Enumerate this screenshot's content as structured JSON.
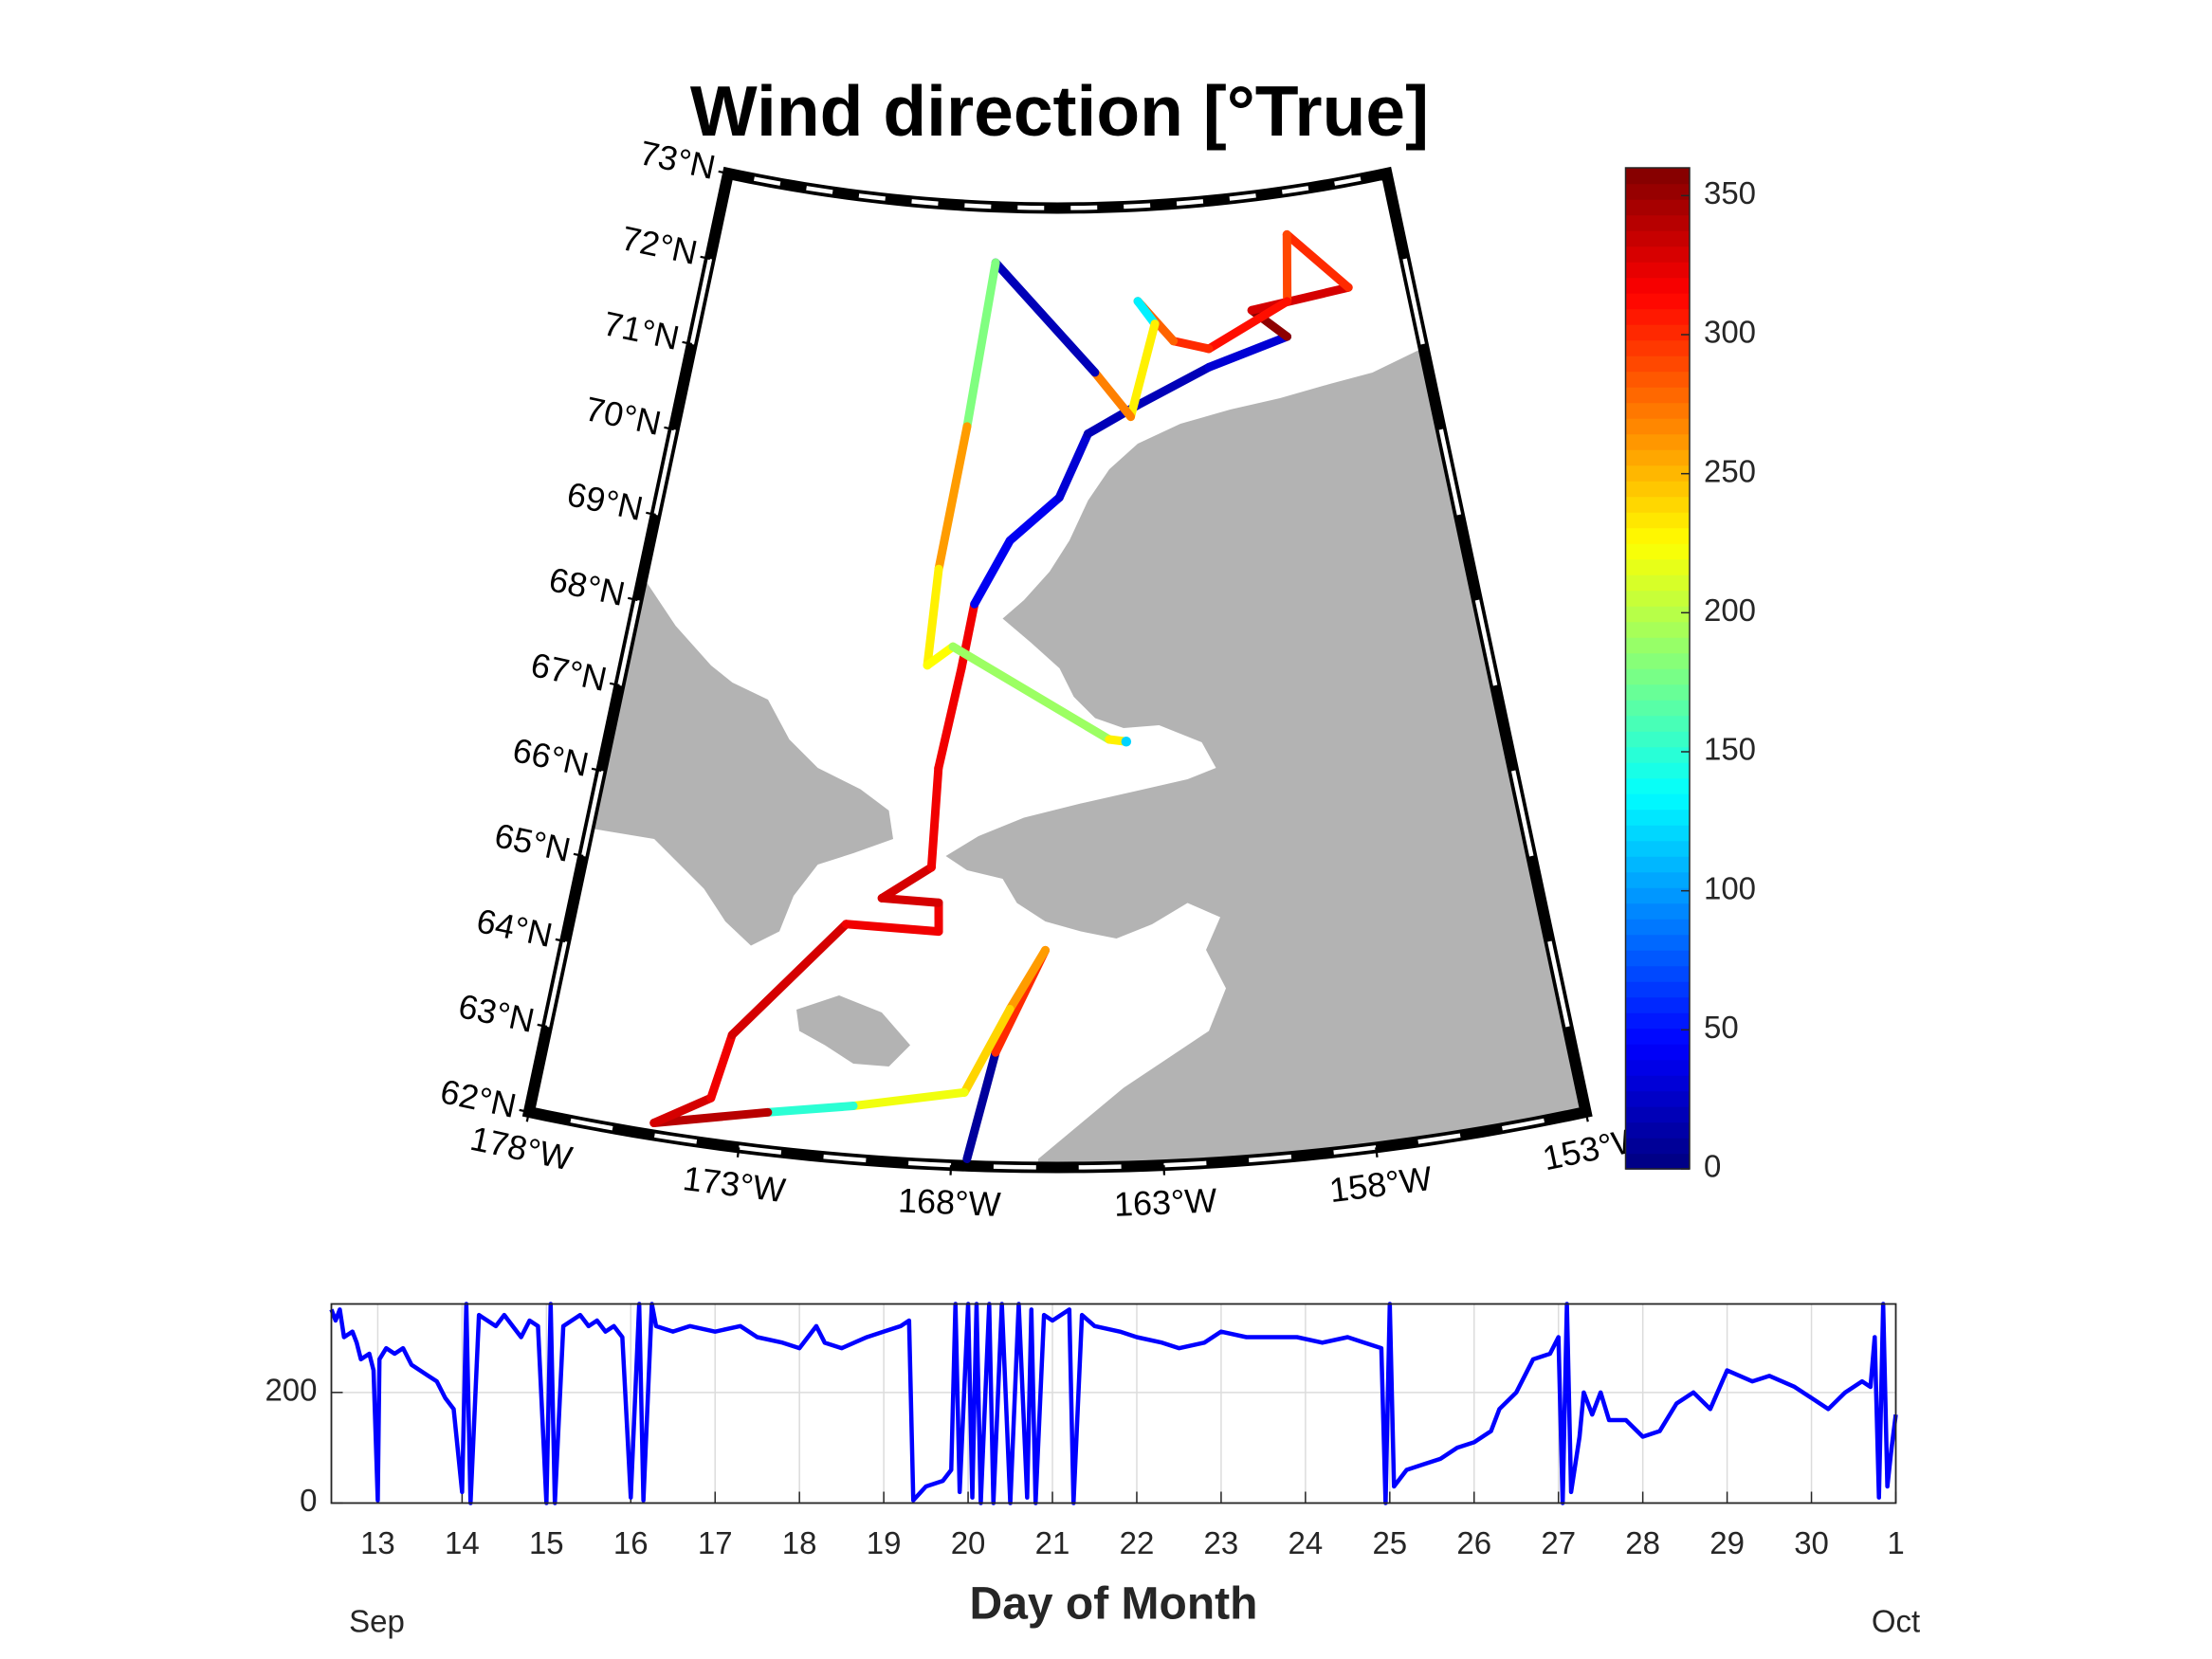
{
  "chart_data": [
    {
      "type": "map",
      "title": "Wind direction [°True]",
      "latlim": [
        62,
        73
      ],
      "lonlim": [
        -178,
        -153
      ],
      "latticks": [
        {
          "value": 62,
          "label": "62°N"
        },
        {
          "value": 63,
          "label": "63°N"
        },
        {
          "value": 64,
          "label": "64°N"
        },
        {
          "value": 65,
          "label": "65°N"
        },
        {
          "value": 66,
          "label": "66°N"
        },
        {
          "value": 67,
          "label": "67°N"
        },
        {
          "value": 68,
          "label": "68°N"
        },
        {
          "value": 69,
          "label": "69°N"
        },
        {
          "value": 70,
          "label": "70°N"
        },
        {
          "value": 71,
          "label": "71°N"
        },
        {
          "value": 72,
          "label": "72°N"
        },
        {
          "value": 73,
          "label": "73°N"
        }
      ],
      "lonticks": [
        {
          "value": -178,
          "label": "178°W"
        },
        {
          "value": -173,
          "label": "173°W"
        },
        {
          "value": -168,
          "label": "168°W"
        },
        {
          "value": -163,
          "label": "163°W"
        },
        {
          "value": -158,
          "label": "158°W"
        },
        {
          "value": -153,
          "label": "153°W"
        }
      ],
      "track": {
        "lat": [
          62.08,
          63.31,
          64.49,
          63.81,
          62.84,
          62.61,
          62.44,
          62.14,
          62.52,
          63.27,
          64.68,
          64.67,
          65.0,
          65.01,
          65.4,
          66.54,
          67.7,
          68.44,
          69.18,
          69.68,
          70.41,
          70.72,
          71.1,
          71.35,
          71.7,
          71.8,
          72.51,
          71.75,
          71.31,
          71.43,
          71.91,
          71.64,
          70.59,
          71.11,
          72.36,
          70.47,
          68.82,
          67.71,
          67.94,
          66.9,
          66.87
        ],
        "lon": [
          -167.63,
          -167.02,
          -165.81,
          -166.69,
          -167.75,
          -170.4,
          -172.42,
          -175.06,
          -173.81,
          -173.51,
          -170.97,
          -168.57,
          -168.61,
          -170.1,
          -168.85,
          -168.81,
          -168.3,
          -168.0,
          -166.98,
          -165.44,
          -164.49,
          -162.81,
          -160.32,
          -157.54,
          -158.65,
          -155.16,
          -157.05,
          -157.37,
          -160.27,
          -161.47,
          -162.64,
          -162.08,
          -163.06,
          -164.22,
          -167.75,
          -168.49,
          -169.14,
          -169.3,
          -168.58,
          -164.04,
          -163.56
        ],
        "values": [
          10,
          300,
          260,
          240,
          220,
          150,
          340,
          330,
          320,
          330,
          320,
          320,
          330,
          330,
          320,
          320,
          320,
          40,
          40,
          30,
          20,
          20,
          30,
          355,
          330,
          300,
          290,
          310,
          300,
          280,
          130,
          230,
          270,
          20,
          180,
          260,
          230,
          225,
          190,
          230,
          120
        ]
      },
      "colormap": "jet",
      "land_color": "#b3b3b3",
      "colorbar": {
        "clim": [
          0,
          360
        ],
        "ticks": [
          0,
          50,
          100,
          150,
          200,
          250,
          300,
          350
        ]
      }
    },
    {
      "type": "line",
      "xlabel": "Day of Month",
      "x": [
        12.45,
        12.5,
        12.55,
        12.6,
        12.7,
        12.75,
        12.8,
        12.9,
        12.95,
        13.0,
        13.02,
        13.1,
        13.2,
        13.3,
        13.4,
        13.5,
        13.6,
        13.7,
        13.8,
        13.9,
        14.0,
        14.05,
        14.1,
        14.2,
        14.3,
        14.4,
        14.5,
        14.6,
        14.7,
        14.8,
        14.9,
        15.0,
        15.05,
        15.1,
        15.2,
        15.3,
        15.4,
        15.5,
        15.6,
        15.7,
        15.8,
        15.9,
        16.0,
        16.1,
        16.15,
        16.25,
        16.3,
        16.5,
        16.7,
        17.0,
        17.3,
        17.5,
        17.8,
        18.0,
        18.2,
        18.3,
        18.5,
        18.8,
        19.0,
        19.2,
        19.3,
        19.35,
        19.5,
        19.7,
        19.8,
        19.85,
        19.9,
        20.0,
        20.05,
        20.1,
        20.15,
        20.25,
        20.3,
        20.4,
        20.5,
        20.6,
        20.7,
        20.75,
        20.8,
        20.9,
        21.0,
        21.2,
        21.25,
        21.35,
        21.5,
        21.8,
        22.0,
        22.3,
        22.5,
        22.8,
        23.0,
        23.3,
        23.6,
        23.9,
        24.2,
        24.5,
        24.7,
        24.9,
        24.95,
        25.0,
        25.05,
        25.2,
        25.4,
        25.6,
        25.8,
        26.0,
        26.2,
        26.3,
        26.5,
        26.7,
        26.9,
        27.0,
        27.05,
        27.1,
        27.15,
        27.25,
        27.3,
        27.4,
        27.5,
        27.6,
        27.8,
        28.0,
        28.2,
        28.4,
        28.6,
        28.8,
        29.0,
        29.3,
        29.5,
        29.8,
        30.0,
        30.2,
        30.4,
        30.6,
        30.7,
        30.75,
        30.8,
        30.85,
        30.9,
        30.95,
        31.0
      ],
      "series": [
        {
          "color": "#0000ff",
          "values": [
            350,
            330,
            350,
            300,
            310,
            290,
            260,
            270,
            240,
            5,
            260,
            280,
            270,
            280,
            250,
            240,
            230,
            220,
            190,
            170,
            20,
            360,
            0,
            340,
            330,
            320,
            340,
            320,
            300,
            330,
            320,
            0,
            360,
            0,
            320,
            330,
            340,
            320,
            330,
            310,
            320,
            300,
            10,
            360,
            5,
            360,
            320,
            310,
            320,
            310,
            320,
            300,
            290,
            280,
            320,
            290,
            280,
            300,
            310,
            320,
            330,
            5,
            30,
            40,
            60,
            360,
            20,
            360,
            10,
            360,
            0,
            360,
            0,
            360,
            0,
            360,
            10,
            350,
            0,
            340,
            330,
            350,
            0,
            340,
            320,
            310,
            300,
            290,
            280,
            290,
            310,
            300,
            300,
            300,
            290,
            300,
            290,
            280,
            0,
            360,
            30,
            60,
            70,
            80,
            100,
            110,
            130,
            170,
            200,
            260,
            270,
            300,
            0,
            360,
            20,
            120,
            200,
            160,
            200,
            150,
            150,
            120,
            130,
            180,
            200,
            170,
            240,
            220,
            230,
            210,
            190,
            170,
            200,
            220,
            210,
            300,
            10,
            360,
            30,
            100,
            160
          ]
        }
      ],
      "xlim": [
        12.45,
        31
      ],
      "ylim": [
        0,
        360
      ],
      "xticks": [
        13,
        14,
        15,
        16,
        17,
        18,
        19,
        20,
        21,
        22,
        23,
        24,
        25,
        26,
        27,
        28,
        29,
        30,
        {
          "value": 31,
          "label": "1"
        }
      ],
      "yticks": [
        0,
        200
      ],
      "grid": true,
      "annotations": [
        "Sep",
        "Oct"
      ]
    }
  ]
}
